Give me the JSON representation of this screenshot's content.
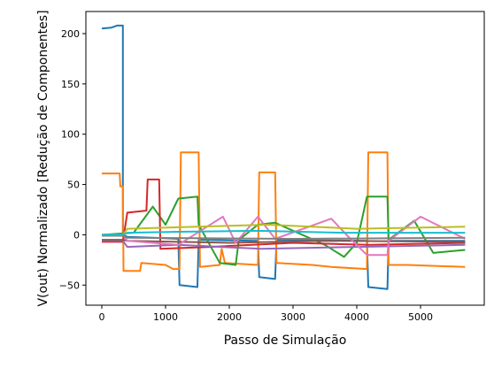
{
  "chart_data": {
    "type": "line",
    "title": "",
    "xlabel": "Passo de Simulação",
    "ylabel": "V(out) Normalizado [Redução de Componentes]",
    "xlim": [
      -250,
      6000
    ],
    "ylim": [
      -70,
      222
    ],
    "xticks": [
      0,
      1000,
      2000,
      3000,
      4000,
      5000
    ],
    "yticks": [
      -50,
      0,
      50,
      100,
      150,
      200
    ],
    "grid": false,
    "legend": "none",
    "series": [
      {
        "color": "#1f77b4",
        "points": [
          [
            0,
            205
          ],
          [
            150,
            206
          ],
          [
            240,
            208
          ],
          [
            330,
            208
          ],
          [
            330,
            0
          ],
          [
            400,
            -2
          ],
          [
            800,
            -3
          ],
          [
            1200,
            -4
          ],
          [
            1220,
            -50
          ],
          [
            1500,
            -52
          ],
          [
            1520,
            -5
          ],
          [
            2450,
            -6
          ],
          [
            2470,
            -42
          ],
          [
            2720,
            -44
          ],
          [
            2740,
            -5
          ],
          [
            4160,
            -6
          ],
          [
            4180,
            -52
          ],
          [
            4480,
            -54
          ],
          [
            4500,
            -6
          ],
          [
            5700,
            -6
          ]
        ]
      },
      {
        "color": "#ff7f0e",
        "points": [
          [
            0,
            61
          ],
          [
            280,
            61
          ],
          [
            290,
            48
          ],
          [
            330,
            48
          ],
          [
            340,
            -36
          ],
          [
            600,
            -36
          ],
          [
            620,
            -28
          ],
          [
            1000,
            -30
          ],
          [
            1120,
            -34
          ],
          [
            1220,
            -34
          ],
          [
            1240,
            82
          ],
          [
            1520,
            82
          ],
          [
            1540,
            -32
          ],
          [
            1850,
            -30
          ],
          [
            1880,
            -14
          ],
          [
            1930,
            -28
          ],
          [
            2450,
            -30
          ],
          [
            2470,
            62
          ],
          [
            2720,
            62
          ],
          [
            2740,
            -28
          ],
          [
            3300,
            -30
          ],
          [
            3600,
            -32
          ],
          [
            4160,
            -34
          ],
          [
            4180,
            82
          ],
          [
            4480,
            82
          ],
          [
            4500,
            -30
          ],
          [
            4800,
            -30
          ],
          [
            5700,
            -32
          ]
        ]
      },
      {
        "color": "#2ca02c",
        "points": [
          [
            0,
            0
          ],
          [
            500,
            2
          ],
          [
            800,
            28
          ],
          [
            1000,
            10
          ],
          [
            1200,
            36
          ],
          [
            1500,
            38
          ],
          [
            1520,
            10
          ],
          [
            1850,
            -28
          ],
          [
            2100,
            -30
          ],
          [
            2150,
            -5
          ],
          [
            2450,
            10
          ],
          [
            2720,
            12
          ],
          [
            3500,
            -10
          ],
          [
            3800,
            -22
          ],
          [
            4000,
            -8
          ],
          [
            4160,
            38
          ],
          [
            4480,
            38
          ],
          [
            4500,
            -5
          ],
          [
            4900,
            14
          ],
          [
            5200,
            -18
          ],
          [
            5700,
            -15
          ]
        ]
      },
      {
        "color": "#d62728",
        "points": [
          [
            0,
            -7
          ],
          [
            330,
            -7
          ],
          [
            400,
            22
          ],
          [
            700,
            24
          ],
          [
            720,
            55
          ],
          [
            900,
            55
          ],
          [
            920,
            -14
          ],
          [
            1700,
            -12
          ],
          [
            3000,
            -8
          ],
          [
            4200,
            -10
          ],
          [
            5700,
            -8
          ]
        ]
      },
      {
        "color": "#9467bd",
        "points": [
          [
            0,
            -6
          ],
          [
            330,
            -6
          ],
          [
            400,
            -12
          ],
          [
            1200,
            -10
          ],
          [
            2500,
            -14
          ],
          [
            4000,
            -12
          ],
          [
            5700,
            -10
          ]
        ]
      },
      {
        "color": "#8c564b",
        "points": [
          [
            0,
            -5
          ],
          [
            330,
            -5
          ],
          [
            400,
            -6
          ],
          [
            2000,
            -8
          ],
          [
            3500,
            -6
          ],
          [
            5700,
            -7
          ]
        ]
      },
      {
        "color": "#e377c2",
        "points": [
          [
            0,
            0
          ],
          [
            330,
            0
          ],
          [
            400,
            -6
          ],
          [
            1200,
            -10
          ],
          [
            1900,
            18
          ],
          [
            2100,
            -8
          ],
          [
            2450,
            18
          ],
          [
            2720,
            -4
          ],
          [
            3600,
            16
          ],
          [
            3900,
            -4
          ],
          [
            4160,
            -20
          ],
          [
            4480,
            -20
          ],
          [
            4500,
            -6
          ],
          [
            5000,
            18
          ],
          [
            5700,
            -4
          ]
        ]
      },
      {
        "color": "#7f7f7f",
        "points": [
          [
            0,
            -1
          ],
          [
            330,
            -1
          ],
          [
            400,
            -3
          ],
          [
            3000,
            -4
          ],
          [
            5700,
            -3
          ]
        ]
      },
      {
        "color": "#bcbd22",
        "points": [
          [
            0,
            0
          ],
          [
            330,
            0
          ],
          [
            400,
            6
          ],
          [
            1500,
            8
          ],
          [
            2600,
            10
          ],
          [
            4000,
            6
          ],
          [
            5700,
            8
          ]
        ]
      },
      {
        "color": "#17becf",
        "points": [
          [
            0,
            0
          ],
          [
            330,
            0
          ],
          [
            400,
            2
          ],
          [
            1200,
            3
          ],
          [
            2450,
            4
          ],
          [
            3800,
            2
          ],
          [
            5700,
            2
          ]
        ]
      }
    ]
  }
}
